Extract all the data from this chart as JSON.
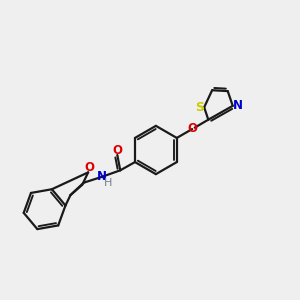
{
  "background_color": "#efefef",
  "bond_color": "#1a1a1a",
  "atom_colors": {
    "O": "#dd0000",
    "N": "#0000cc",
    "S": "#cccc00",
    "H": "#708090"
  },
  "figsize": [
    3.0,
    3.0
  ],
  "dpi": 100
}
